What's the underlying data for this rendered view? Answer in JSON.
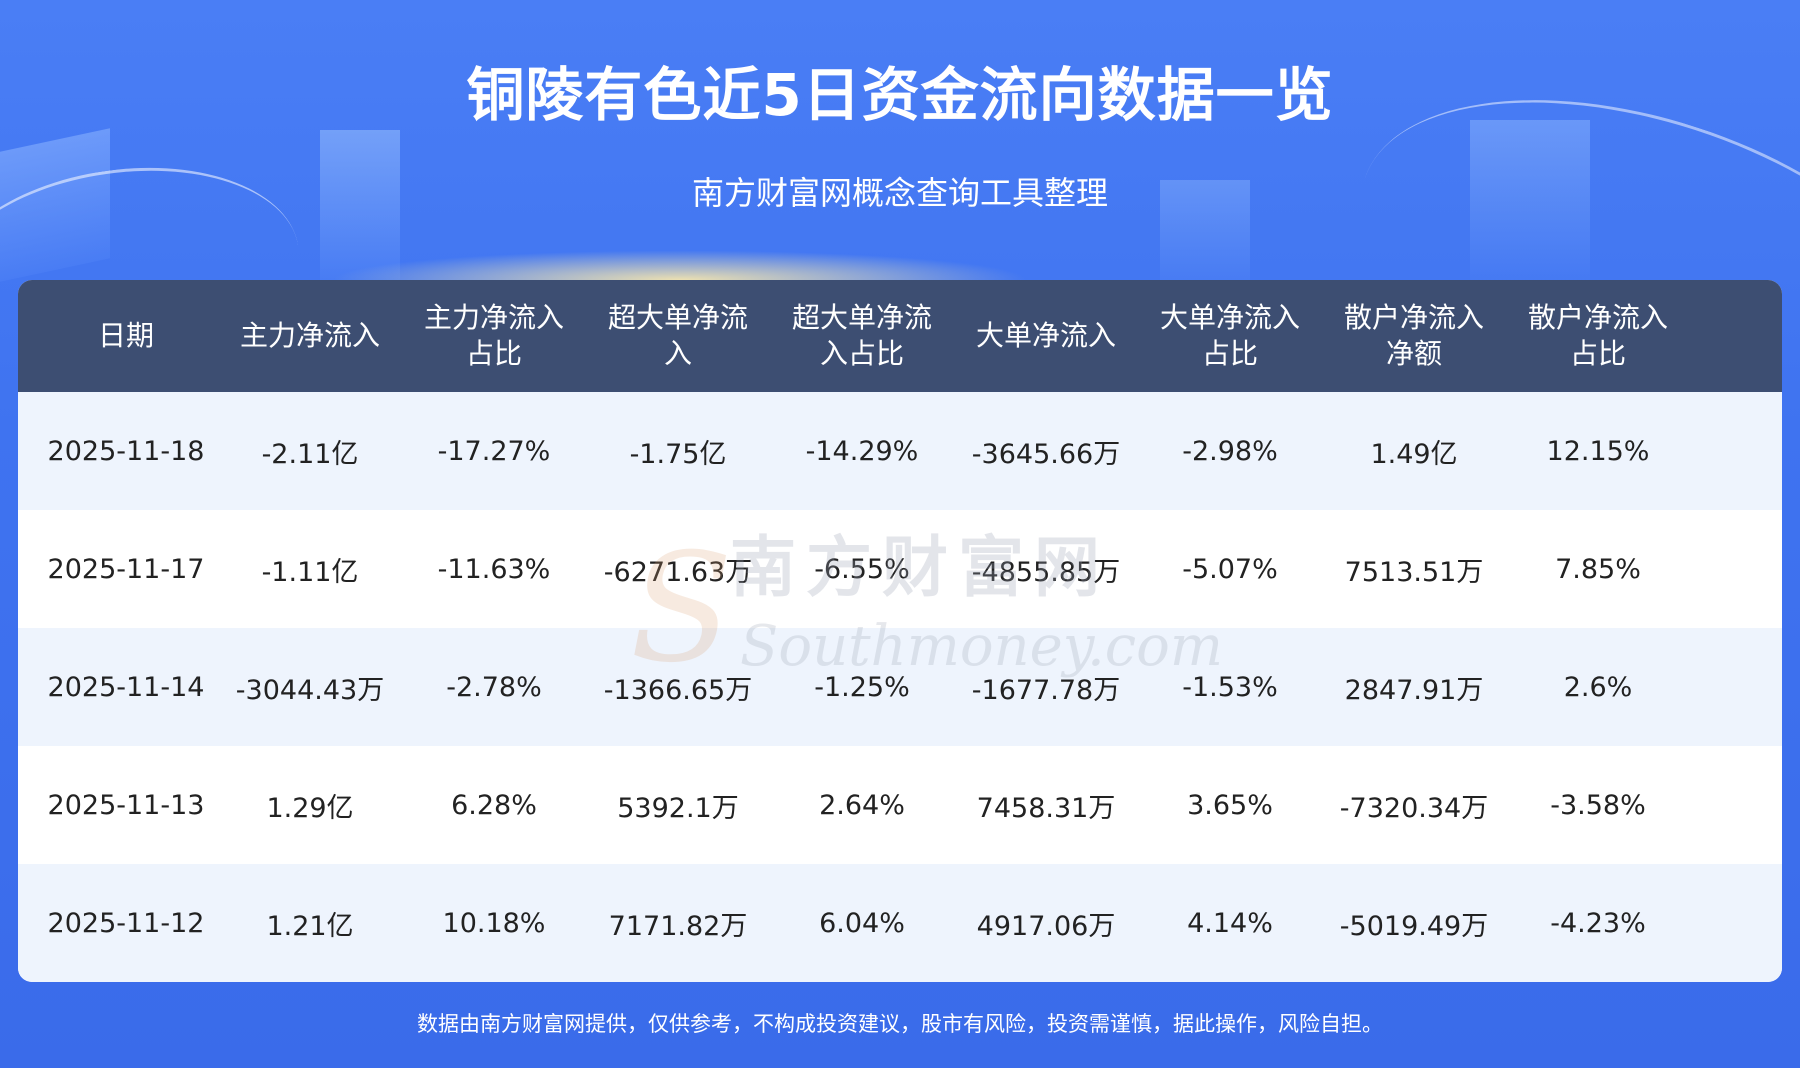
{
  "title": "铜陵有色近5日资金流向数据一览",
  "subtitle": "南方财富网概念查询工具整理",
  "table": {
    "headers": [
      "日期",
      "主力净流入",
      "主力净流入\n占比",
      "超大单净流\n入",
      "超大单净流\n入占比",
      "大单净流入",
      "大单净流入\n占比",
      "散户净流入\n净额",
      "散户净流入\n占比"
    ],
    "rows": [
      [
        "2025-11-18",
        "-2.11亿",
        "-17.27%",
        "-1.75亿",
        "-14.29%",
        "-3645.66万",
        "-2.98%",
        "1.49亿",
        "12.15%"
      ],
      [
        "2025-11-17",
        "-1.11亿",
        "-11.63%",
        "-6271.63万",
        "-6.55%",
        "-4855.85万",
        "-5.07%",
        "7513.51万",
        "7.85%"
      ],
      [
        "2025-11-14",
        "-3044.43万",
        "-2.78%",
        "-1366.65万",
        "-1.25%",
        "-1677.78万",
        "-1.53%",
        "2847.91万",
        "2.6%"
      ],
      [
        "2025-11-13",
        "1.29亿",
        "6.28%",
        "5392.1万",
        "2.64%",
        "7458.31万",
        "3.65%",
        "-7320.34万",
        "-3.58%"
      ],
      [
        "2025-11-12",
        "1.21亿",
        "10.18%",
        "7171.82万",
        "6.04%",
        "4917.06万",
        "4.14%",
        "-5019.49万",
        "-4.23%"
      ]
    ]
  },
  "watermark": {
    "cn": "南方财富网",
    "en": "Southmoney.com"
  },
  "footer": "数据由南方财富网提供，仅供参考，不构成投资建议，股市有风险，投资需谨慎，据此操作，风险自担。",
  "colors": {
    "background": "#4a7ef5",
    "header_bg": "#3d4e72",
    "row_alt": "#eef4fd",
    "text": "#222222"
  }
}
